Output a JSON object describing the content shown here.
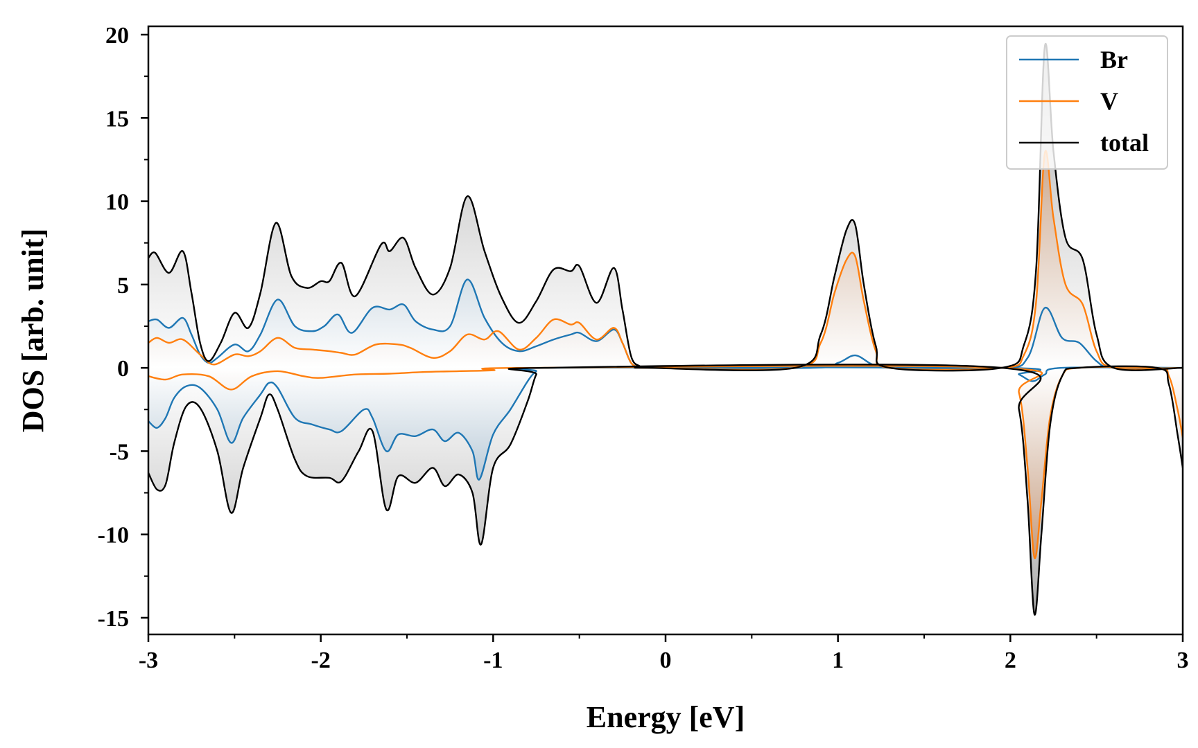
{
  "chart_data": {
    "type": "area",
    "xlabel": "Energy [eV]",
    "ylabel": "DOS [arb. unit]",
    "xlim": [
      -3,
      3
    ],
    "ylim": [
      -16,
      20.5
    ],
    "xticks": [
      -3,
      -2,
      -1,
      0,
      1,
      2,
      3
    ],
    "yticks": [
      -15,
      -10,
      -5,
      0,
      5,
      10,
      15,
      20
    ],
    "xtick_labels": [
      "-3",
      "-2",
      "-1",
      "0",
      "1",
      "2",
      "3"
    ],
    "ytick_labels": [
      "-15",
      "-10",
      "-5",
      "0",
      "5",
      "10",
      "15",
      "20"
    ],
    "grid": false,
    "legend_position": "top-right",
    "series": [
      {
        "name": "Br",
        "color": "#1f77b4",
        "up": [
          [
            -3,
            2.8
          ],
          [
            -2.95,
            2.9
          ],
          [
            -2.88,
            2.4
          ],
          [
            -2.8,
            3.0
          ],
          [
            -2.75,
            2.0
          ],
          [
            -2.7,
            0.8
          ],
          [
            -2.65,
            0.3
          ],
          [
            -2.6,
            0.6
          ],
          [
            -2.5,
            1.4
          ],
          [
            -2.42,
            1.0
          ],
          [
            -2.35,
            2.0
          ],
          [
            -2.25,
            4.1
          ],
          [
            -2.15,
            2.5
          ],
          [
            -2.05,
            2.2
          ],
          [
            -1.98,
            2.5
          ],
          [
            -1.9,
            3.2
          ],
          [
            -1.82,
            2.1
          ],
          [
            -1.7,
            3.6
          ],
          [
            -1.6,
            3.5
          ],
          [
            -1.52,
            3.8
          ],
          [
            -1.45,
            2.8
          ],
          [
            -1.35,
            2.3
          ],
          [
            -1.25,
            2.5
          ],
          [
            -1.15,
            5.3
          ],
          [
            -1.05,
            3.0
          ],
          [
            -0.95,
            1.5
          ],
          [
            -0.85,
            1.0
          ],
          [
            -0.75,
            1.3
          ],
          [
            -0.65,
            1.7
          ],
          [
            -0.55,
            2.0
          ],
          [
            -0.5,
            2.1
          ],
          [
            -0.4,
            1.6
          ],
          [
            -0.3,
            2.3
          ],
          [
            -0.25,
            1.5
          ],
          [
            -0.2,
            0.3
          ],
          [
            -0.15,
            0.05
          ],
          [
            -0.1,
            0
          ],
          [
            0.85,
            0
          ],
          [
            1.0,
            0.3
          ],
          [
            1.1,
            0.75
          ],
          [
            1.2,
            0.2
          ],
          [
            1.3,
            0
          ],
          [
            1.95,
            0
          ],
          [
            2.1,
            0.6
          ],
          [
            2.2,
            3.6
          ],
          [
            2.3,
            1.8
          ],
          [
            2.4,
            1.5
          ],
          [
            2.5,
            0.4
          ],
          [
            2.6,
            0
          ],
          [
            3.0,
            0
          ]
        ],
        "down": [
          [
            -3,
            -3.2
          ],
          [
            -2.95,
            -3.6
          ],
          [
            -2.9,
            -3.0
          ],
          [
            -2.85,
            -1.8
          ],
          [
            -2.78,
            -1.1
          ],
          [
            -2.7,
            -1.2
          ],
          [
            -2.6,
            -2.5
          ],
          [
            -2.52,
            -4.5
          ],
          [
            -2.45,
            -3.0
          ],
          [
            -2.35,
            -1.6
          ],
          [
            -2.3,
            -0.9
          ],
          [
            -2.25,
            -1.2
          ],
          [
            -2.15,
            -3.0
          ],
          [
            -2.05,
            -3.4
          ],
          [
            -1.95,
            -3.7
          ],
          [
            -1.88,
            -3.8
          ],
          [
            -1.75,
            -2.5
          ],
          [
            -1.7,
            -3.0
          ],
          [
            -1.62,
            -5.0
          ],
          [
            -1.55,
            -4.0
          ],
          [
            -1.45,
            -4.1
          ],
          [
            -1.35,
            -3.7
          ],
          [
            -1.28,
            -4.4
          ],
          [
            -1.2,
            -3.9
          ],
          [
            -1.12,
            -5.0
          ],
          [
            -1.08,
            -6.7
          ],
          [
            -1.0,
            -4.0
          ],
          [
            -0.9,
            -2.5
          ],
          [
            -0.8,
            -0.8
          ],
          [
            -0.75,
            -0.2
          ],
          [
            -0.7,
            0
          ],
          [
            1.95,
            0
          ],
          [
            2.05,
            -0.4
          ],
          [
            2.13,
            -0.8
          ],
          [
            2.2,
            -0.4
          ],
          [
            2.3,
            0
          ],
          [
            3.0,
            0
          ]
        ]
      },
      {
        "name": "V",
        "color": "#ff7f0e",
        "up": [
          [
            -3,
            1.5
          ],
          [
            -2.95,
            1.8
          ],
          [
            -2.88,
            1.5
          ],
          [
            -2.8,
            1.7
          ],
          [
            -2.7,
            0.8
          ],
          [
            -2.62,
            0.2
          ],
          [
            -2.5,
            0.8
          ],
          [
            -2.42,
            0.7
          ],
          [
            -2.35,
            1.0
          ],
          [
            -2.25,
            1.8
          ],
          [
            -2.15,
            1.2
          ],
          [
            -2.05,
            1.1
          ],
          [
            -1.95,
            1.0
          ],
          [
            -1.88,
            0.9
          ],
          [
            -1.8,
            0.8
          ],
          [
            -1.68,
            1.4
          ],
          [
            -1.55,
            1.4
          ],
          [
            -1.48,
            1.2
          ],
          [
            -1.35,
            0.6
          ],
          [
            -1.25,
            1.0
          ],
          [
            -1.15,
            2.0
          ],
          [
            -1.05,
            1.7
          ],
          [
            -0.97,
            2.2
          ],
          [
            -0.85,
            1.1
          ],
          [
            -0.75,
            1.8
          ],
          [
            -0.65,
            2.9
          ],
          [
            -0.55,
            2.6
          ],
          [
            -0.5,
            2.7
          ],
          [
            -0.4,
            1.7
          ],
          [
            -0.3,
            2.4
          ],
          [
            -0.25,
            1.5
          ],
          [
            -0.2,
            0.3
          ],
          [
            -0.15,
            0.05
          ],
          [
            -0.1,
            0
          ],
          [
            0.75,
            0
          ],
          [
            0.9,
            1.5
          ],
          [
            0.98,
            4.5
          ],
          [
            1.05,
            6.5
          ],
          [
            1.1,
            6.7
          ],
          [
            1.15,
            4.0
          ],
          [
            1.22,
            1.0
          ],
          [
            1.3,
            0
          ],
          [
            1.95,
            0
          ],
          [
            2.08,
            0.8
          ],
          [
            2.15,
            4.0
          ],
          [
            2.2,
            12.9
          ],
          [
            2.25,
            9.0
          ],
          [
            2.32,
            5.0
          ],
          [
            2.42,
            3.8
          ],
          [
            2.5,
            1.0
          ],
          [
            2.6,
            0
          ],
          [
            3.0,
            0
          ]
        ],
        "down": [
          [
            -3,
            -0.5
          ],
          [
            -2.9,
            -0.7
          ],
          [
            -2.8,
            -0.4
          ],
          [
            -2.65,
            -0.5
          ],
          [
            -2.52,
            -1.3
          ],
          [
            -2.4,
            -0.5
          ],
          [
            -2.25,
            -0.2
          ],
          [
            -2.1,
            -0.5
          ],
          [
            -2.0,
            -0.6
          ],
          [
            -1.8,
            -0.4
          ],
          [
            -1.6,
            -0.35
          ],
          [
            -1.4,
            -0.25
          ],
          [
            -1.2,
            -0.2
          ],
          [
            -1.0,
            -0.15
          ],
          [
            -0.8,
            0
          ],
          [
            1.95,
            0
          ],
          [
            2.05,
            -1.5
          ],
          [
            2.1,
            -6.0
          ],
          [
            2.14,
            -11.4
          ],
          [
            2.18,
            -8.0
          ],
          [
            2.23,
            -3.0
          ],
          [
            2.3,
            -0.5
          ],
          [
            2.4,
            0
          ],
          [
            2.85,
            0
          ],
          [
            2.92,
            -0.5
          ],
          [
            2.97,
            -2.5
          ],
          [
            3.0,
            -4.2
          ]
        ]
      },
      {
        "name": "total",
        "color": "#000000",
        "up": [
          [
            -3,
            6.6
          ],
          [
            -2.96,
            6.9
          ],
          [
            -2.88,
            5.7
          ],
          [
            -2.8,
            7.0
          ],
          [
            -2.75,
            4.5
          ],
          [
            -2.7,
            1.5
          ],
          [
            -2.65,
            0.4
          ],
          [
            -2.58,
            1.5
          ],
          [
            -2.5,
            3.3
          ],
          [
            -2.42,
            2.4
          ],
          [
            -2.35,
            4.5
          ],
          [
            -2.26,
            8.7
          ],
          [
            -2.17,
            5.5
          ],
          [
            -2.08,
            4.8
          ],
          [
            -2.0,
            5.2
          ],
          [
            -1.95,
            5.2
          ],
          [
            -1.88,
            6.3
          ],
          [
            -1.8,
            4.3
          ],
          [
            -1.65,
            7.4
          ],
          [
            -1.6,
            7.0
          ],
          [
            -1.52,
            7.8
          ],
          [
            -1.45,
            6.0
          ],
          [
            -1.35,
            4.4
          ],
          [
            -1.25,
            6.0
          ],
          [
            -1.15,
            10.3
          ],
          [
            -1.05,
            7.0
          ],
          [
            -0.95,
            4.2
          ],
          [
            -0.85,
            2.7
          ],
          [
            -0.75,
            4.0
          ],
          [
            -0.65,
            5.9
          ],
          [
            -0.55,
            5.8
          ],
          [
            -0.5,
            6.1
          ],
          [
            -0.4,
            3.9
          ],
          [
            -0.3,
            6.0
          ],
          [
            -0.25,
            3.5
          ],
          [
            -0.2,
            0.7
          ],
          [
            -0.15,
            0.1
          ],
          [
            -0.1,
            0
          ],
          [
            0.75,
            0
          ],
          [
            0.9,
            2.0
          ],
          [
            0.98,
            5.5
          ],
          [
            1.05,
            8.3
          ],
          [
            1.1,
            8.6
          ],
          [
            1.15,
            5.0
          ],
          [
            1.22,
            1.3
          ],
          [
            1.3,
            0
          ],
          [
            1.95,
            0
          ],
          [
            2.08,
            1.4
          ],
          [
            2.15,
            6.0
          ],
          [
            2.2,
            19.3
          ],
          [
            2.25,
            13.0
          ],
          [
            2.32,
            7.8
          ],
          [
            2.42,
            6.5
          ],
          [
            2.5,
            2.0
          ],
          [
            2.6,
            0
          ],
          [
            3.0,
            0
          ]
        ],
        "down": [
          [
            -3,
            -6.3
          ],
          [
            -2.95,
            -7.3
          ],
          [
            -2.9,
            -7.0
          ],
          [
            -2.85,
            -4.5
          ],
          [
            -2.78,
            -2.3
          ],
          [
            -2.7,
            -2.4
          ],
          [
            -2.6,
            -5.0
          ],
          [
            -2.52,
            -8.7
          ],
          [
            -2.45,
            -6.0
          ],
          [
            -2.35,
            -3.0
          ],
          [
            -2.3,
            -1.6
          ],
          [
            -2.25,
            -2.5
          ],
          [
            -2.15,
            -5.5
          ],
          [
            -2.08,
            -6.5
          ],
          [
            -1.95,
            -6.6
          ],
          [
            -1.88,
            -6.8
          ],
          [
            -1.78,
            -5.0
          ],
          [
            -1.7,
            -3.8
          ],
          [
            -1.62,
            -8.5
          ],
          [
            -1.55,
            -6.5
          ],
          [
            -1.45,
            -6.9
          ],
          [
            -1.35,
            -6.0
          ],
          [
            -1.28,
            -7.1
          ],
          [
            -1.2,
            -6.4
          ],
          [
            -1.12,
            -7.5
          ],
          [
            -1.07,
            -10.6
          ],
          [
            -1.0,
            -6.0
          ],
          [
            -0.9,
            -4.6
          ],
          [
            -0.8,
            -2.0
          ],
          [
            -0.75,
            -0.4
          ],
          [
            -0.7,
            0
          ],
          [
            1.95,
            0
          ],
          [
            2.05,
            -2.5
          ],
          [
            2.1,
            -8.0
          ],
          [
            2.14,
            -14.8
          ],
          [
            2.18,
            -10.0
          ],
          [
            2.23,
            -3.5
          ],
          [
            2.3,
            -0.5
          ],
          [
            2.4,
            0
          ],
          [
            2.85,
            0
          ],
          [
            2.92,
            -1.0
          ],
          [
            2.97,
            -4.0
          ],
          [
            3.0,
            -6.0
          ]
        ]
      }
    ]
  }
}
